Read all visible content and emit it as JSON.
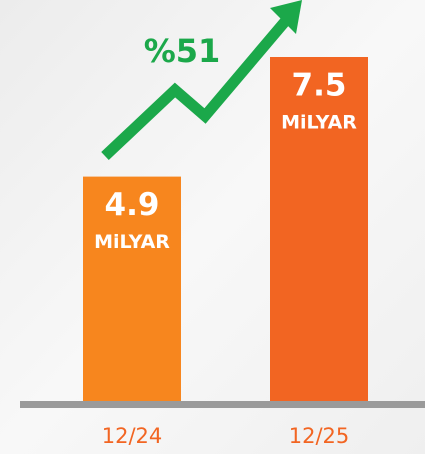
{
  "chart_data": {
    "type": "bar",
    "categories": [
      "12/24",
      "12/25"
    ],
    "values": [
      4.9,
      7.5
    ],
    "unit_label": "MiLYAR",
    "colors": [
      "#f7861e",
      "#f26522"
    ],
    "annotation": "%51",
    "annotation_color": "#1ba84a",
    "category_label_color": "#f26522"
  }
}
